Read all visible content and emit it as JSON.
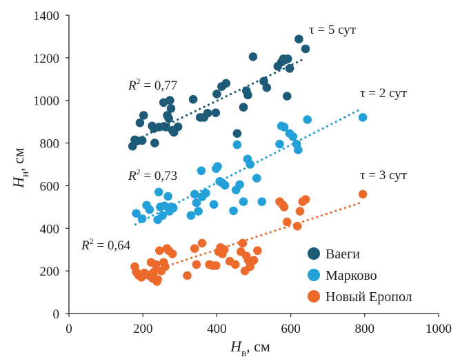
{
  "chart_data": {
    "type": "scatter",
    "xlim": [
      0,
      1000
    ],
    "ylim": [
      0,
      1400
    ],
    "x_ticks": [
      "0",
      "200",
      "400",
      "600",
      "800",
      "1000"
    ],
    "y_ticks": [
      "0",
      "200",
      "400",
      "600",
      "800",
      "1000",
      "1200",
      "1400"
    ],
    "xlabel": {
      "symbol": "H",
      "subscript": "в",
      "unit": ", см"
    },
    "ylabel": {
      "symbol": "H",
      "subscript": "н",
      "unit": ", см"
    },
    "grid": false,
    "legend_position": "bottom-right",
    "colors": {
      "Ваеги": "#1d5a78",
      "Марково": "#23a0d8",
      "Новый Еропол": "#ec6a2c"
    },
    "series": [
      {
        "name": "Ваеги",
        "color": "#1d5a78",
        "trendline": {
          "x1": 175,
          "y1": 810,
          "x2": 630,
          "y2": 1190
        },
        "r2": "0,77",
        "tau": "τ = 5 сут",
        "points": [
          [
            172,
            785
          ],
          [
            178,
            815
          ],
          [
            185,
            810
          ],
          [
            192,
            895
          ],
          [
            198,
            812
          ],
          [
            202,
            930
          ],
          [
            225,
            880
          ],
          [
            230,
            868
          ],
          [
            232,
            800
          ],
          [
            244,
            875
          ],
          [
            256,
            990
          ],
          [
            257,
            878
          ],
          [
            262,
            875
          ],
          [
            266,
            930
          ],
          [
            270,
            915
          ],
          [
            273,
            1000
          ],
          [
            276,
            962
          ],
          [
            280,
            860
          ],
          [
            284,
            850
          ],
          [
            295,
            876
          ],
          [
            336,
            1005
          ],
          [
            355,
            920
          ],
          [
            365,
            920
          ],
          [
            375,
            940
          ],
          [
            397,
            942
          ],
          [
            400,
            1030
          ],
          [
            413,
            1065
          ],
          [
            425,
            1080
          ],
          [
            472,
            968
          ],
          [
            480,
            1045
          ],
          [
            484,
            1025
          ],
          [
            498,
            1205
          ],
          [
            455,
            845
          ],
          [
            527,
            1090
          ],
          [
            535,
            1060
          ],
          [
            565,
            1160
          ],
          [
            575,
            1180
          ],
          [
            580,
            1195
          ],
          [
            585,
            1190
          ],
          [
            590,
            1020
          ],
          [
            592,
            1195
          ],
          [
            597,
            1150
          ],
          [
            622,
            1288
          ],
          [
            640,
            1242
          ]
        ]
      },
      {
        "name": "Марково",
        "color": "#23a0d8",
        "trendline": {
          "x1": 180,
          "y1": 418,
          "x2": 790,
          "y2": 960
        },
        "r2": "0,73",
        "tau": "τ = 2 сут",
        "points": [
          [
            182,
            470
          ],
          [
            198,
            445
          ],
          [
            210,
            508
          ],
          [
            218,
            488
          ],
          [
            240,
            440
          ],
          [
            243,
            570
          ],
          [
            247,
            500
          ],
          [
            253,
            460
          ],
          [
            258,
            505
          ],
          [
            268,
            550
          ],
          [
            272,
            480
          ],
          [
            276,
            500
          ],
          [
            282,
            495
          ],
          [
            330,
            460
          ],
          [
            340,
            560
          ],
          [
            345,
            520
          ],
          [
            350,
            480
          ],
          [
            358,
            670
          ],
          [
            360,
            548
          ],
          [
            370,
            565
          ],
          [
            392,
            512
          ],
          [
            398,
            680
          ],
          [
            402,
            690
          ],
          [
            408,
            620
          ],
          [
            415,
            612
          ],
          [
            422,
            602
          ],
          [
            445,
            482
          ],
          [
            452,
            580
          ],
          [
            455,
            792
          ],
          [
            462,
            605
          ],
          [
            472,
            525
          ],
          [
            483,
            725
          ],
          [
            490,
            700
          ],
          [
            508,
            635
          ],
          [
            522,
            525
          ],
          [
            570,
            795
          ],
          [
            575,
            880
          ],
          [
            582,
            875
          ],
          [
            597,
            845
          ],
          [
            606,
            830
          ],
          [
            616,
            795
          ],
          [
            620,
            768
          ],
          [
            645,
            910
          ],
          [
            795,
            920
          ]
        ]
      },
      {
        "name": "Новый Еропол",
        "color": "#ec6a2c",
        "trendline": {
          "x1": 180,
          "y1": 175,
          "x2": 790,
          "y2": 520
        },
        "r2": "0,64",
        "tau": "τ = 3 сут",
        "points": [
          [
            178,
            220
          ],
          [
            182,
            195
          ],
          [
            188,
            180
          ],
          [
            196,
            170
          ],
          [
            204,
            190
          ],
          [
            214,
            180
          ],
          [
            222,
            240
          ],
          [
            226,
            165
          ],
          [
            230,
            195
          ],
          [
            235,
            230
          ],
          [
            238,
            150
          ],
          [
            240,
            160
          ],
          [
            245,
            295
          ],
          [
            250,
            200
          ],
          [
            256,
            240
          ],
          [
            260,
            220
          ],
          [
            265,
            305
          ],
          [
            270,
            295
          ],
          [
            280,
            280
          ],
          [
            320,
            178
          ],
          [
            340,
            305
          ],
          [
            345,
            230
          ],
          [
            360,
            330
          ],
          [
            380,
            230
          ],
          [
            388,
            225
          ],
          [
            398,
            225
          ],
          [
            405,
            290
          ],
          [
            410,
            310
          ],
          [
            415,
            280
          ],
          [
            420,
            300
          ],
          [
            435,
            245
          ],
          [
            450,
            230
          ],
          [
            465,
            290
          ],
          [
            470,
            330
          ],
          [
            476,
            200
          ],
          [
            480,
            270
          ],
          [
            485,
            250
          ],
          [
            490,
            220
          ],
          [
            500,
            250
          ],
          [
            510,
            295
          ],
          [
            570,
            525
          ],
          [
            578,
            510
          ],
          [
            582,
            500
          ],
          [
            590,
            430
          ],
          [
            618,
            410
          ],
          [
            625,
            480
          ],
          [
            632,
            525
          ],
          [
            640,
            535
          ],
          [
            795,
            560
          ]
        ]
      }
    ]
  },
  "annotations": {
    "r2_label": "R",
    "r2_sup": "2",
    "r2_eq": " = "
  }
}
